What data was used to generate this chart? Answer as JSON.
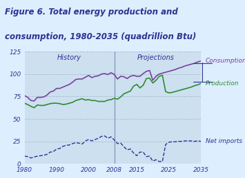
{
  "title_line1": "Figure 6. Total energy production and",
  "title_line2": "consumption, 1980-2035 (quadrillion Btu)",
  "title_color": "#2e3192",
  "bg_color": "#ddeeff",
  "plot_bg_color": "#cce0f0",
  "history_label": "History",
  "projections_label": "Projections",
  "divider_year": 2008,
  "ylim": [
    0,
    125
  ],
  "yticks": [
    0,
    25,
    50,
    75,
    100,
    125
  ],
  "xticks": [
    1980,
    1990,
    2000,
    2008,
    2015,
    2025,
    2035
  ],
  "xticklabels": [
    "1980",
    "1990",
    "2000",
    "2008",
    "2015",
    "2025",
    "2035"
  ],
  "consumption_color": "#7b3f9e",
  "production_color": "#2e8b2e",
  "net_imports_color": "#2e3192",
  "consumption_label": "Consumption",
  "production_label": "Production",
  "net_imports_label": "Net imports",
  "consumption_years": [
    1980,
    1981,
    1982,
    1983,
    1984,
    1985,
    1986,
    1987,
    1988,
    1989,
    1990,
    1991,
    1992,
    1993,
    1994,
    1995,
    1996,
    1997,
    1998,
    1999,
    2000,
    2001,
    2002,
    2003,
    2004,
    2005,
    2006,
    2007,
    2008,
    2009,
    2010,
    2011,
    2012,
    2013,
    2014,
    2015,
    2016,
    2017,
    2018,
    2019,
    2020,
    2021,
    2022,
    2023,
    2024,
    2025,
    2026,
    2027,
    2028,
    2029,
    2030,
    2031,
    2032,
    2033,
    2034,
    2035
  ],
  "consumption_values": [
    76.0,
    74.0,
    70.5,
    70.0,
    74.0,
    74.0,
    74.5,
    76.5,
    80.0,
    81.0,
    84.0,
    84.0,
    85.5,
    87.0,
    88.5,
    91.0,
    94.0,
    94.5,
    94.5,
    96.5,
    98.5,
    96.0,
    97.5,
    98.0,
    100.0,
    100.5,
    99.5,
    101.5,
    99.5,
    94.5,
    97.5,
    97.0,
    95.0,
    97.5,
    98.5,
    97.5,
    97.5,
    100.5,
    103.0,
    104.0,
    93.0,
    97.5,
    100.0,
    101.0,
    102.0,
    103.0,
    104.0,
    105.0,
    106.5,
    107.5,
    109.0,
    110.0,
    111.0,
    112.0,
    113.5,
    114.5
  ],
  "production_years": [
    1980,
    1981,
    1982,
    1983,
    1984,
    1985,
    1986,
    1987,
    1988,
    1989,
    1990,
    1991,
    1992,
    1993,
    1994,
    1995,
    1996,
    1997,
    1998,
    1999,
    2000,
    2001,
    2002,
    2003,
    2004,
    2005,
    2006,
    2007,
    2008,
    2009,
    2010,
    2011,
    2012,
    2013,
    2014,
    2015,
    2016,
    2017,
    2018,
    2019,
    2020,
    2021,
    2022,
    2023,
    2024,
    2025,
    2026,
    2027,
    2028,
    2029,
    2030,
    2031,
    2032,
    2033,
    2034,
    2035
  ],
  "production_values": [
    67.5,
    66.0,
    64.0,
    62.5,
    65.5,
    65.0,
    65.0,
    66.0,
    67.0,
    67.5,
    67.5,
    67.0,
    66.0,
    66.5,
    67.5,
    68.5,
    70.5,
    71.5,
    72.5,
    71.0,
    71.5,
    70.5,
    70.5,
    69.5,
    69.5,
    69.5,
    71.0,
    71.5,
    73.0,
    72.0,
    74.5,
    78.0,
    79.5,
    81.0,
    86.5,
    88.5,
    84.5,
    87.5,
    95.0,
    95.5,
    90.0,
    93.0,
    97.5,
    98.5,
    80.5,
    79.0,
    79.5,
    80.5,
    81.5,
    82.5,
    83.5,
    84.5,
    85.5,
    87.0,
    88.0,
    89.5
  ],
  "grid_color": "#aabbcc",
  "grid_linestyle": "--",
  "divider_color": "#8899bb",
  "axis_label_color": "#2e3192",
  "tick_label_color": "#2e3192"
}
